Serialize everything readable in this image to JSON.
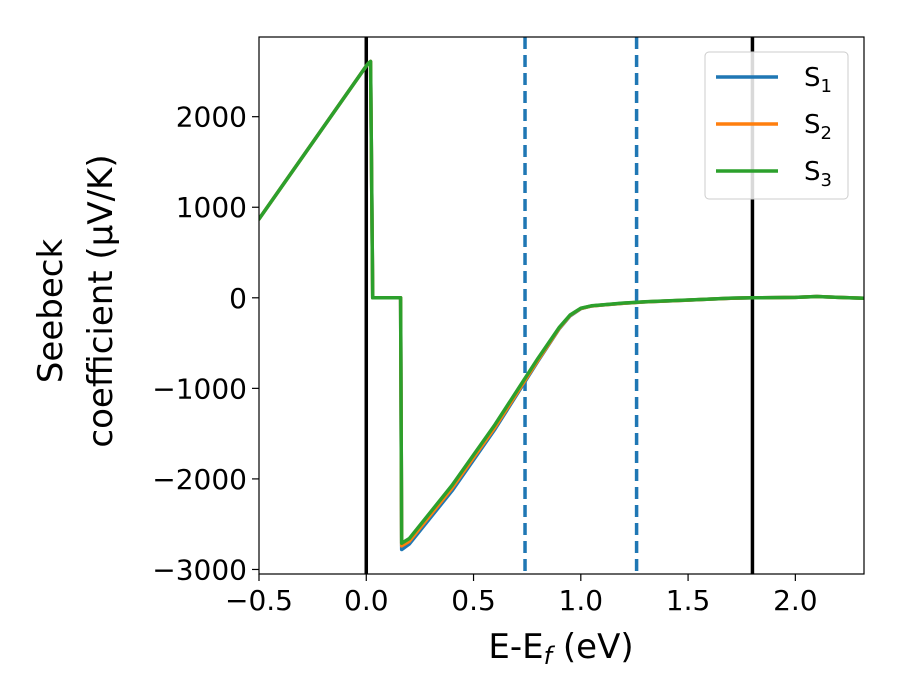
{
  "chart_data": {
    "type": "line",
    "xlabel": "E-E_f (eV)",
    "ylabel_line1": "Seebeck",
    "ylabel_line2": "coefficient  (μV/K)",
    "xlim": [
      -0.5,
      2.32
    ],
    "ylim": [
      -3050,
      2880
    ],
    "x_ticks": [
      -0.5,
      0.0,
      0.5,
      1.0,
      1.5,
      2.0
    ],
    "x_tick_labels": [
      "−0.5",
      "0.0",
      "0.5",
      "1.0",
      "1.5",
      "2.0"
    ],
    "y_ticks": [
      -3000,
      -2000,
      -1000,
      0,
      1000,
      2000
    ],
    "y_tick_labels": [
      "−3000",
      "−2000",
      "−1000",
      "0",
      "1000",
      "2000"
    ],
    "grid": false,
    "legend_position": "top-right",
    "vertical_lines": [
      {
        "x": 0.0,
        "style": "solid",
        "color": "#000000"
      },
      {
        "x": 1.8,
        "style": "solid",
        "color": "#000000"
      },
      {
        "x": 0.74,
        "style": "dashed",
        "color": "#1f77b4"
      },
      {
        "x": 1.26,
        "style": "dashed",
        "color": "#1f77b4"
      }
    ],
    "series": [
      {
        "name_base": "S",
        "name_sub": "1",
        "color": "#1f77b4",
        "points": [
          [
            -0.5,
            870
          ],
          [
            0.0,
            2560
          ],
          [
            0.01,
            2590
          ],
          [
            0.02,
            2610
          ],
          [
            0.03,
            0
          ],
          [
            0.16,
            0
          ],
          [
            0.165,
            -2780
          ],
          [
            0.2,
            -2720
          ],
          [
            0.4,
            -2130
          ],
          [
            0.6,
            -1450
          ],
          [
            0.8,
            -700
          ],
          [
            0.9,
            -340
          ],
          [
            0.95,
            -200
          ],
          [
            1.0,
            -120
          ],
          [
            1.05,
            -90
          ],
          [
            1.1,
            -80
          ],
          [
            1.2,
            -60
          ],
          [
            1.3,
            -45
          ],
          [
            1.4,
            -35
          ],
          [
            1.5,
            -25
          ],
          [
            1.6,
            -15
          ],
          [
            1.7,
            -5
          ],
          [
            1.8,
            0
          ],
          [
            2.0,
            5
          ],
          [
            2.1,
            15
          ],
          [
            2.2,
            5
          ],
          [
            2.32,
            -5
          ]
        ]
      },
      {
        "name_base": "S",
        "name_sub": "2",
        "color": "#ff7f0e",
        "points": [
          [
            -0.5,
            870
          ],
          [
            0.0,
            2560
          ],
          [
            0.01,
            2590
          ],
          [
            0.02,
            2610
          ],
          [
            0.03,
            0
          ],
          [
            0.16,
            0
          ],
          [
            0.165,
            -2740
          ],
          [
            0.2,
            -2690
          ],
          [
            0.4,
            -2100
          ],
          [
            0.6,
            -1430
          ],
          [
            0.8,
            -690
          ],
          [
            0.9,
            -335
          ],
          [
            0.95,
            -195
          ],
          [
            1.0,
            -118
          ],
          [
            1.05,
            -90
          ],
          [
            1.1,
            -80
          ],
          [
            1.2,
            -60
          ],
          [
            1.3,
            -45
          ],
          [
            1.4,
            -35
          ],
          [
            1.5,
            -25
          ],
          [
            1.6,
            -15
          ],
          [
            1.7,
            -5
          ],
          [
            1.8,
            0
          ],
          [
            2.0,
            5
          ],
          [
            2.1,
            15
          ],
          [
            2.2,
            5
          ],
          [
            2.32,
            -5
          ]
        ]
      },
      {
        "name_base": "S",
        "name_sub": "3",
        "color": "#2ca02c",
        "points": [
          [
            -0.5,
            870
          ],
          [
            0.0,
            2560
          ],
          [
            0.01,
            2590
          ],
          [
            0.02,
            2610
          ],
          [
            0.03,
            0
          ],
          [
            0.16,
            0
          ],
          [
            0.165,
            -2710
          ],
          [
            0.2,
            -2660
          ],
          [
            0.4,
            -2070
          ],
          [
            0.6,
            -1400
          ],
          [
            0.8,
            -670
          ],
          [
            0.9,
            -325
          ],
          [
            0.95,
            -190
          ],
          [
            1.0,
            -115
          ],
          [
            1.05,
            -88
          ],
          [
            1.1,
            -78
          ],
          [
            1.2,
            -58
          ],
          [
            1.3,
            -44
          ],
          [
            1.4,
            -34
          ],
          [
            1.5,
            -24
          ],
          [
            1.6,
            -14
          ],
          [
            1.7,
            -4
          ],
          [
            1.8,
            0
          ],
          [
            2.0,
            5
          ],
          [
            2.1,
            15
          ],
          [
            2.2,
            5
          ],
          [
            2.32,
            -5
          ]
        ]
      }
    ]
  }
}
